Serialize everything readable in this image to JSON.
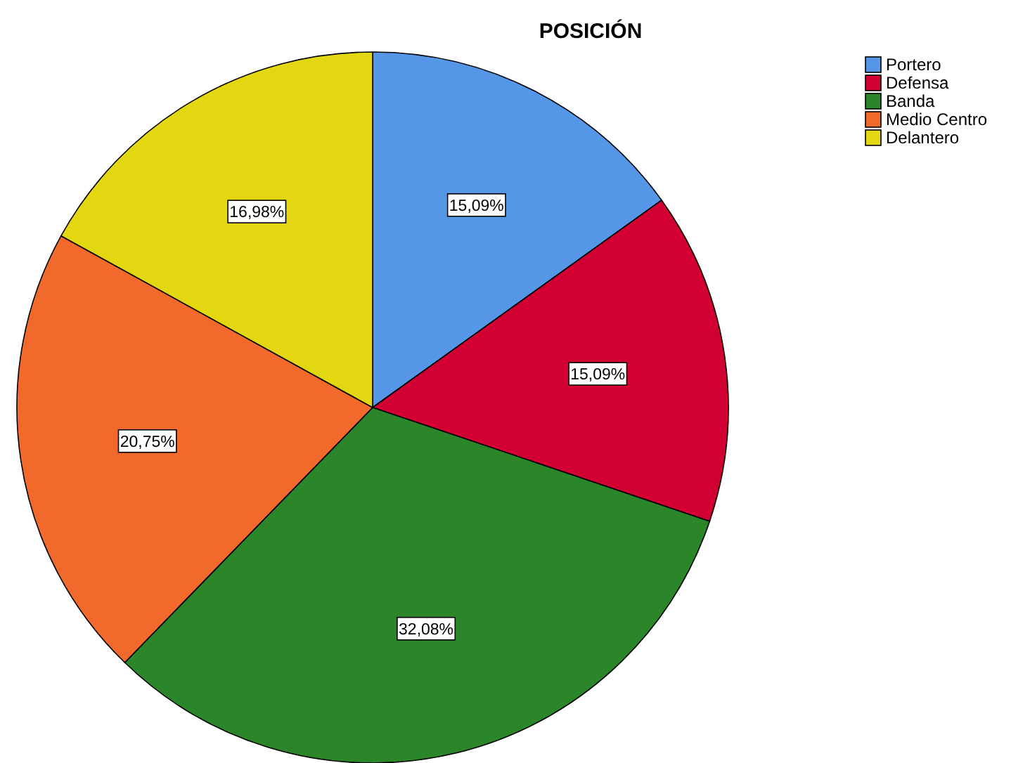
{
  "chart_data": {
    "type": "pie",
    "title": "POSICIÓN",
    "categories": [
      "Portero",
      "Defensa",
      "Banda",
      "Medio Centro",
      "Delantero"
    ],
    "values": [
      15.09,
      15.09,
      32.08,
      20.75,
      16.98
    ],
    "value_labels": [
      "15,09%",
      "15,09%",
      "32,08%",
      "20,75%",
      "16,98%"
    ],
    "colors": [
      "#5596e6",
      "#d20032",
      "#2a8629",
      "#f26a2b",
      "#e3d712"
    ],
    "legend": "top right"
  }
}
